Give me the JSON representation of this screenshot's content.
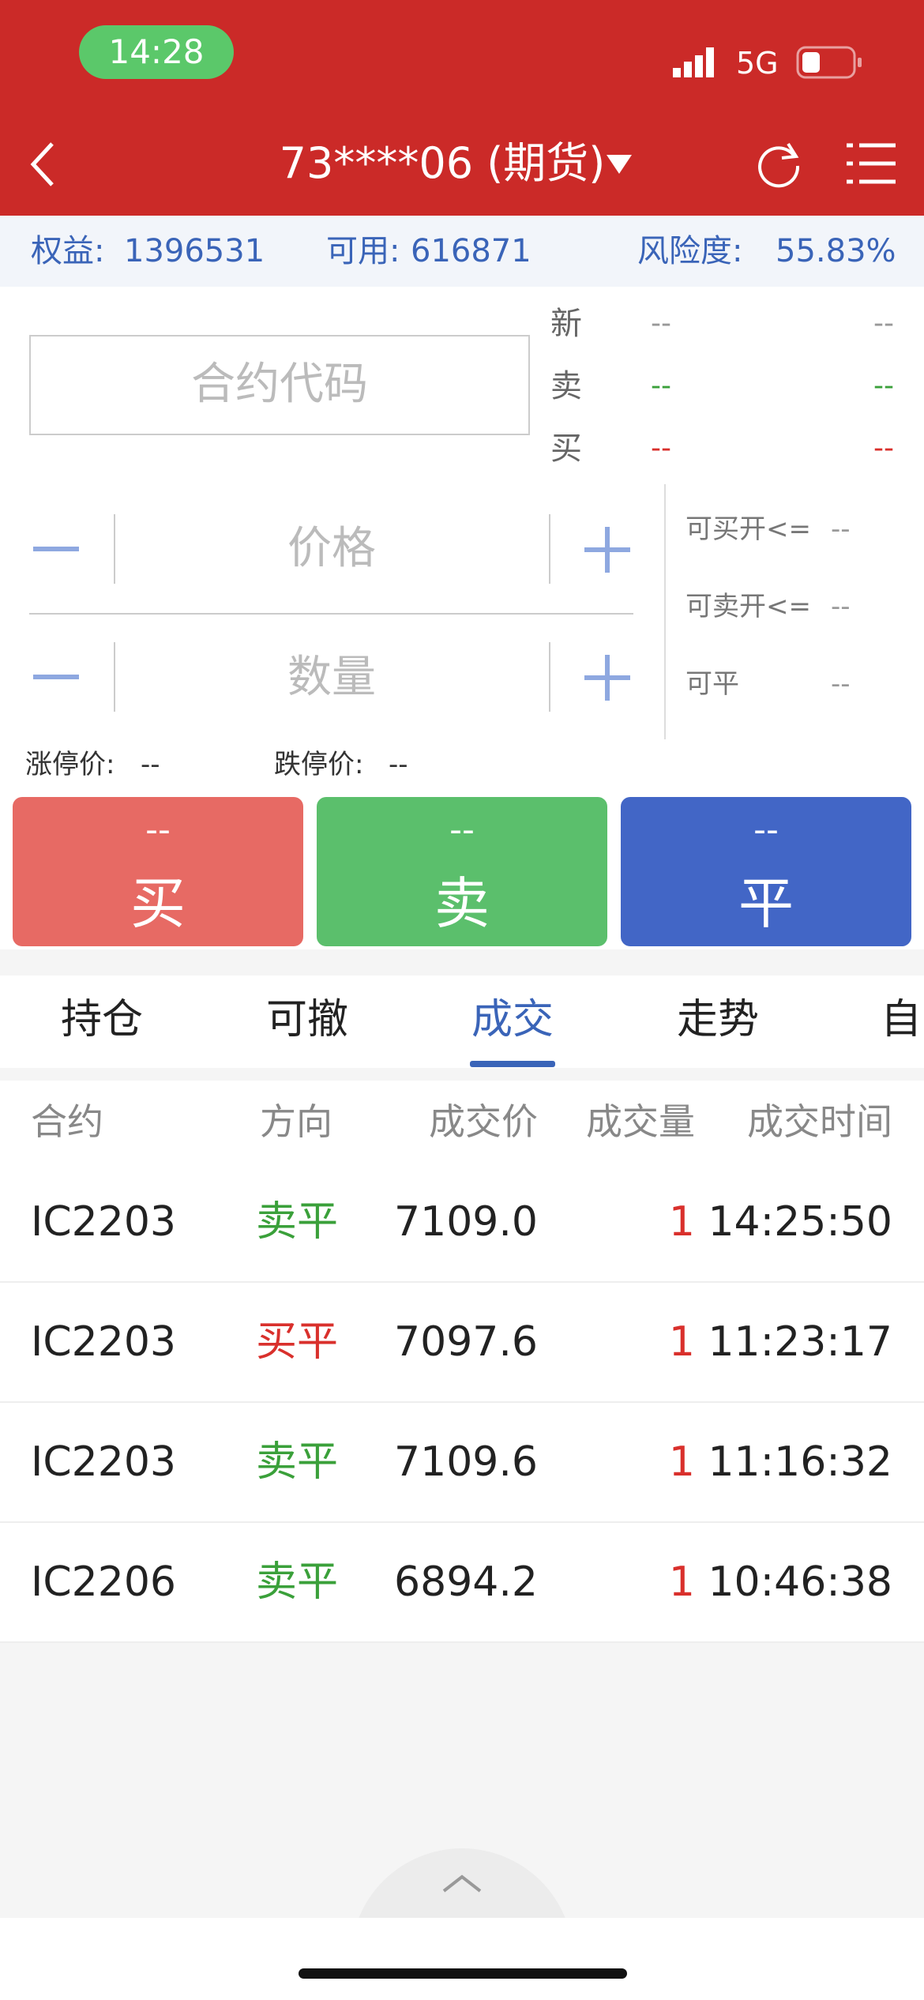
{
  "status": {
    "time": "14:28",
    "network": "5G"
  },
  "header": {
    "title": "73****06 (期货)"
  },
  "account": [
    {
      "label": "权益:",
      "value": "1396531"
    },
    {
      "label": "可用:",
      "value": "616871"
    },
    {
      "label": "风险度:",
      "value": "55.83%"
    }
  ],
  "quote": {
    "placeholder": "合约代码",
    "rows": [
      {
        "label": "新",
        "bid": "--",
        "ask": "--",
        "color": "#999999"
      },
      {
        "label": "卖",
        "bid": "--",
        "ask": "--",
        "color": "#3aa03a"
      },
      {
        "label": "买",
        "bid": "--",
        "ask": "--",
        "color": "#d9302c"
      }
    ]
  },
  "order": {
    "price_placeholder": "价格",
    "quantity_placeholder": "数量",
    "limits": [
      {
        "label": "可买开<=",
        "value": "--"
      },
      {
        "label": "可卖开<=",
        "value": "--"
      },
      {
        "label": "可平",
        "value": "--"
      }
    ]
  },
  "limit_prices": [
    {
      "label": "涨停价:",
      "value": "--"
    },
    {
      "label": "跌停价:",
      "value": "--"
    }
  ],
  "buttons": [
    {
      "price": "--",
      "label": "买",
      "color": "#e76a64"
    },
    {
      "price": "--",
      "label": "卖",
      "color": "#5bbf6c"
    },
    {
      "price": "--",
      "label": "平",
      "color": "#4266c6"
    }
  ],
  "tabs": {
    "items": [
      "持仓",
      "可撤",
      "成交",
      "走势",
      "自"
    ],
    "active": 2
  },
  "table": {
    "columns": [
      "合约",
      "方向",
      "成交价",
      "成交量",
      "成交时间"
    ],
    "rows": [
      {
        "contract": "IC2203",
        "direction": "卖平",
        "price": "7109.0",
        "volume": 1,
        "time": "14:25:50",
        "color": "#3aa03a"
      },
      {
        "contract": "IC2203",
        "direction": "买平",
        "price": "7097.6",
        "volume": 1,
        "time": "11:23:17",
        "color": "#d9302c"
      },
      {
        "contract": "IC2203",
        "direction": "卖平",
        "price": "7109.6",
        "volume": 1,
        "time": "11:16:32",
        "color": "#3aa03a"
      },
      {
        "contract": "IC2206",
        "direction": "卖平",
        "price": "6894.2",
        "volume": 1,
        "time": "10:46:38",
        "color": "#3aa03a"
      }
    ]
  }
}
